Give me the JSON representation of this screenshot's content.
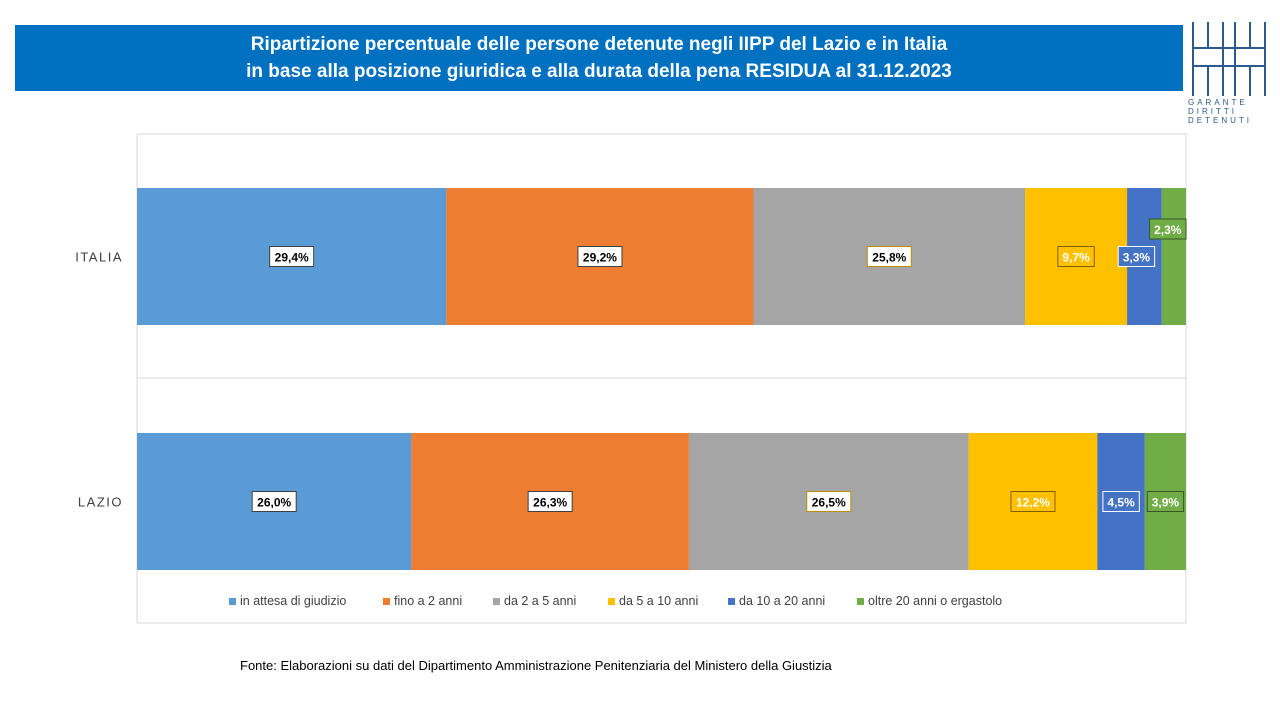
{
  "header": {
    "title_line1": "Ripartizione percentuale delle persone detenute negli IIPP del Lazio e in Italia",
    "title_line2": "in base alla posizione giuridica e alla durata della pena RESIDUA al 31.12.2023"
  },
  "logo": {
    "text_lines": [
      "GARANTE",
      "DIRITTI",
      "DETENUTI"
    ],
    "color": "#2b5a8e"
  },
  "footer": {
    "source": "Fonte:  Elaborazioni su dati del Dipartimento  Amministrazione Penitenziaria del Ministero della Giustizia"
  },
  "chart_data": {
    "type": "bar",
    "orientation": "horizontal",
    "stacked": "percent",
    "categories": [
      "ITALIA",
      "LAZIO"
    ],
    "series": [
      {
        "name": "in attesa di giudizio",
        "color": "#5b9bd5",
        "values": [
          29.4,
          26.0
        ],
        "labels": [
          "29,4%",
          "26,0%"
        ]
      },
      {
        "name": "fino a 2 anni",
        "color": "#ed7d31",
        "values": [
          29.2,
          26.3
        ],
        "labels": [
          "29,2%",
          "26,3%"
        ]
      },
      {
        "name": "da 2 a 5 anni",
        "color": "#a5a5a5",
        "values": [
          25.8,
          26.5
        ],
        "labels": [
          "25,8%",
          "26,5%"
        ]
      },
      {
        "name": "da 5 a 10 anni",
        "color": "#ffc000",
        "values": [
          9.7,
          12.2
        ],
        "labels": [
          "9,7%",
          "12,2%"
        ]
      },
      {
        "name": "da 10 a 20 anni",
        "color": "#4472c4",
        "values": [
          3.3,
          4.5
        ],
        "labels": [
          "3,3%",
          "4,5%"
        ]
      },
      {
        "name": "oltre 20 anni o ergastolo",
        "color": "#70ad47",
        "values": [
          2.3,
          3.9
        ],
        "labels": [
          "2,3%",
          "3,9%"
        ]
      }
    ],
    "xlim": [
      0,
      100
    ],
    "legend_position": "bottom",
    "grid": false
  }
}
